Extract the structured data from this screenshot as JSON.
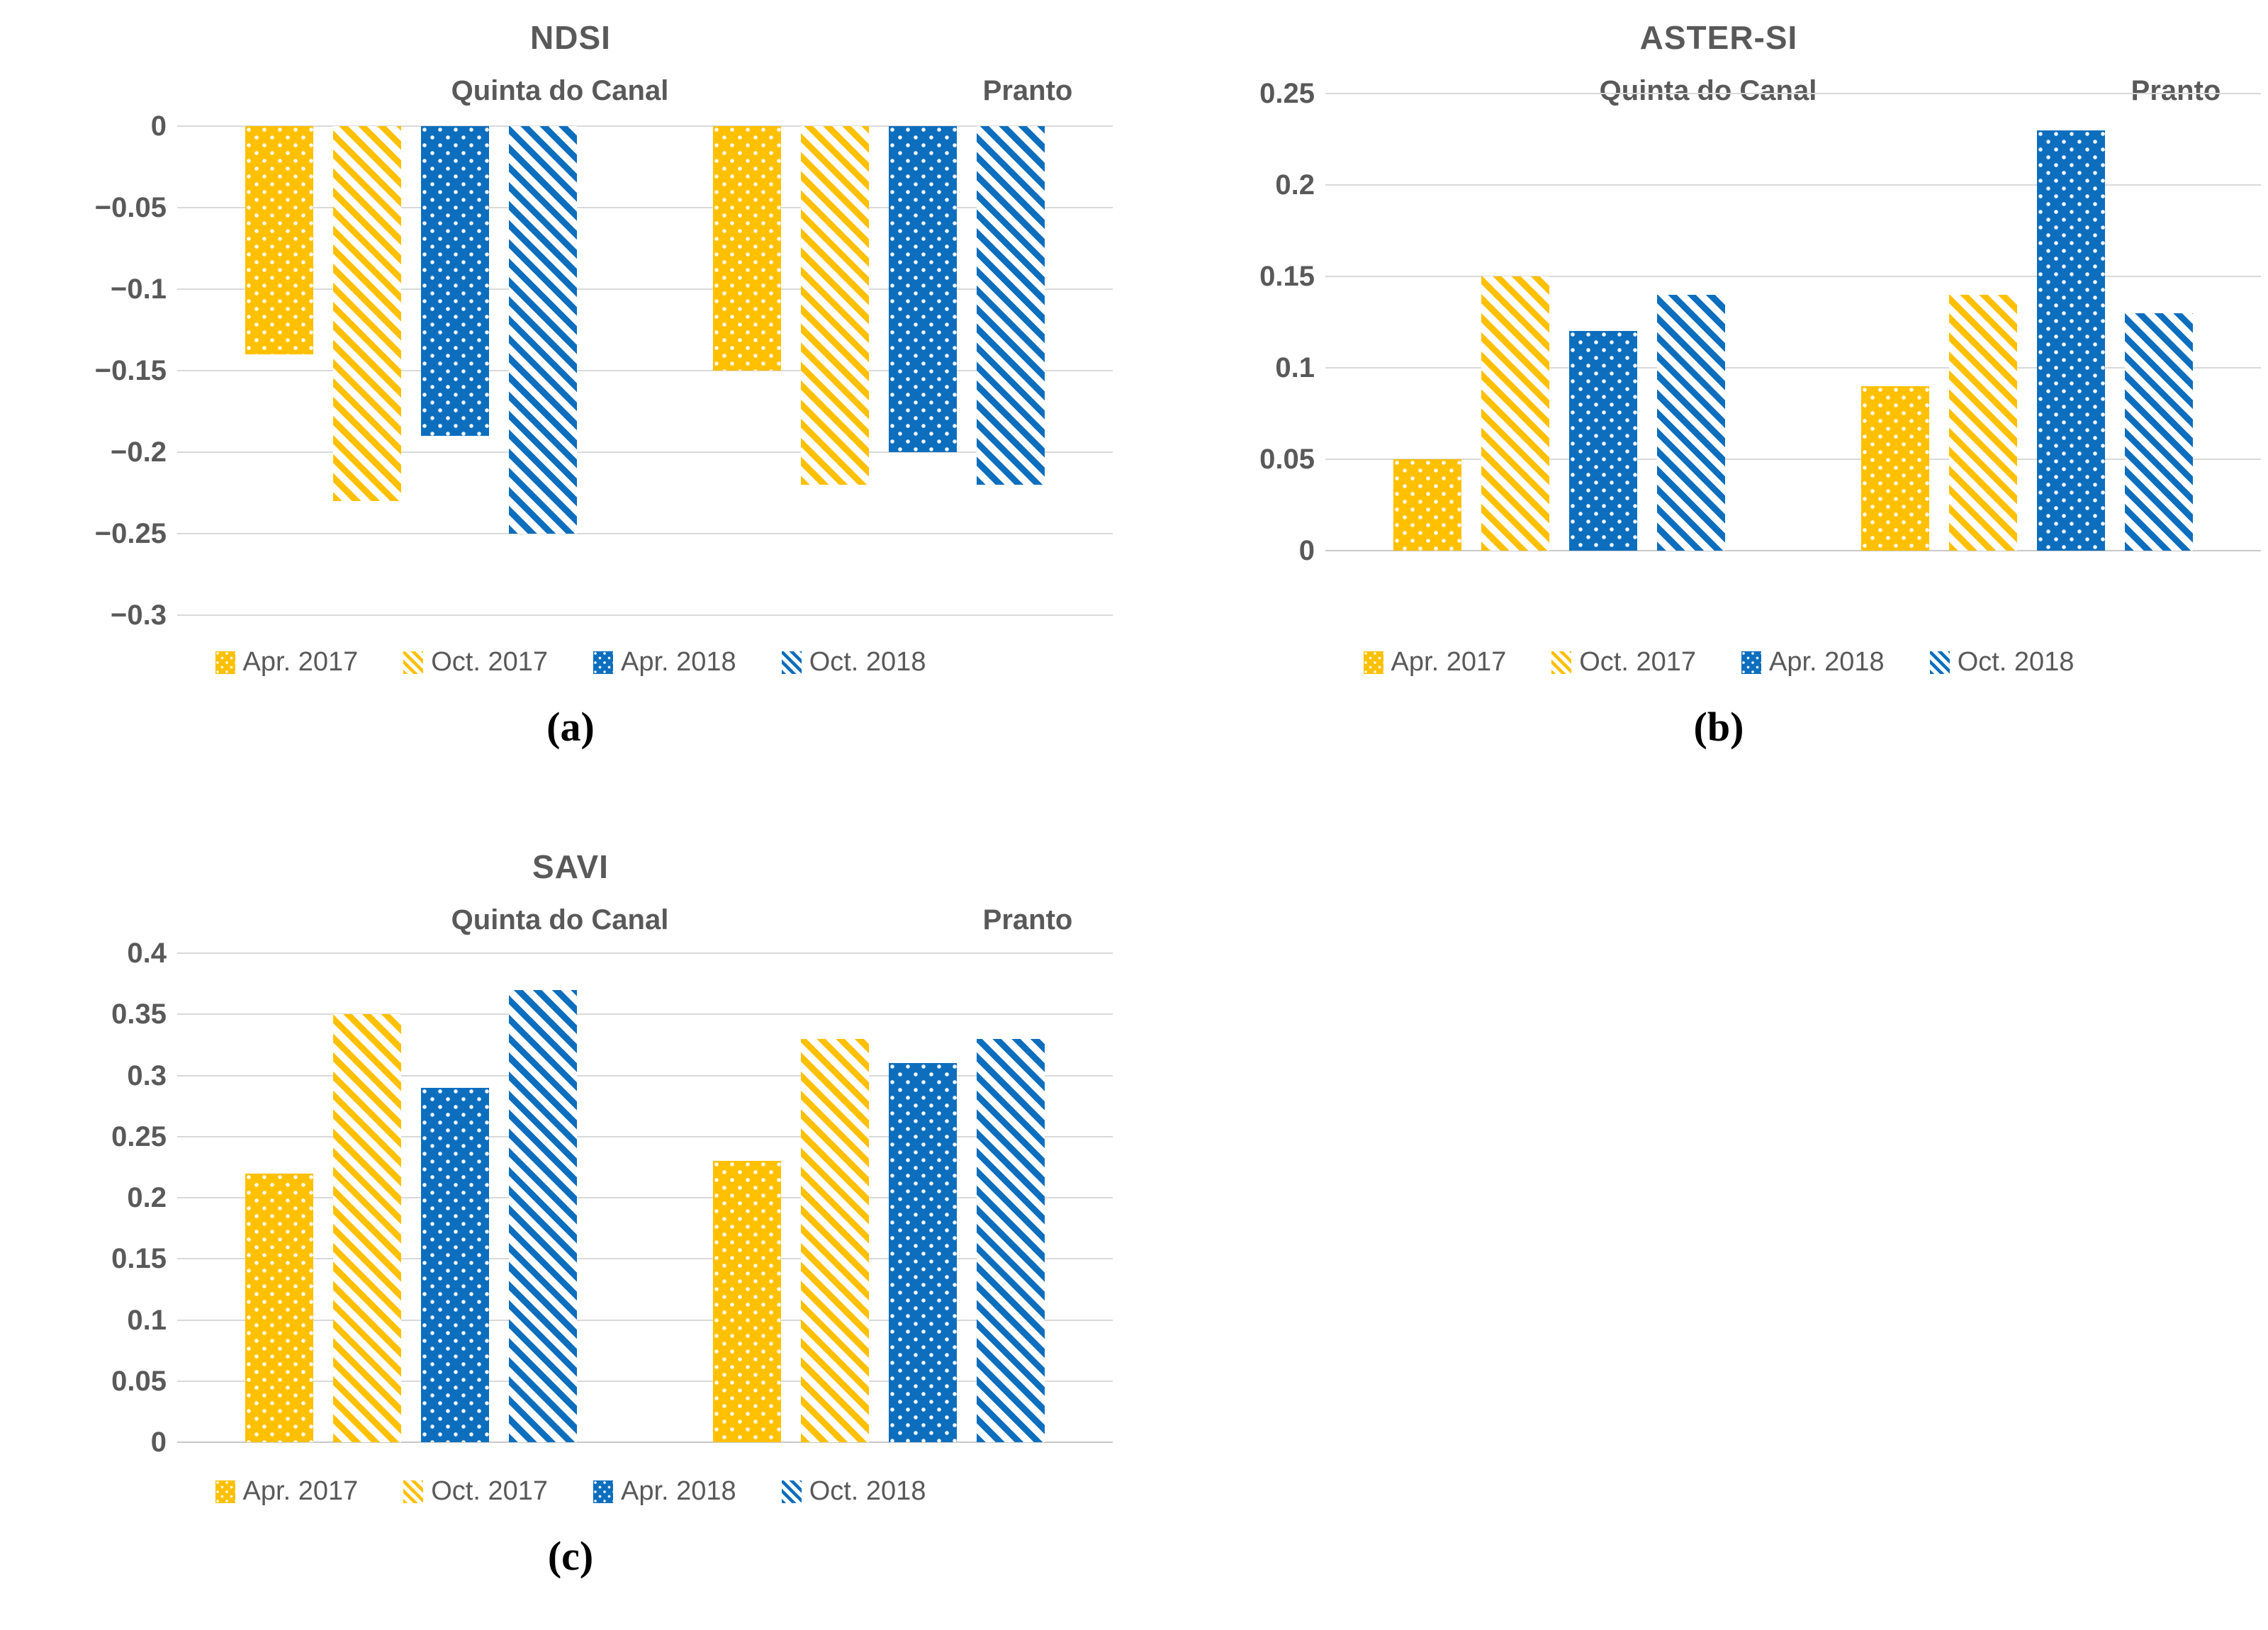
{
  "figure": {
    "text_color": "#595959",
    "grid_color": "#D9D9D9",
    "background": "#FFFFFF",
    "accent_yellow": "#FFC000",
    "accent_blue": "#0D6EBE",
    "legend_labels": [
      "Apr. 2017",
      "Oct. 2017",
      "Apr. 2018",
      "Oct. 2018"
    ],
    "legend_swatch_names": [
      "yellow-dotted-swatch",
      "yellow-hatch-swatch",
      "blue-dotted-swatch",
      "blue-hatch-swatch"
    ]
  },
  "chart_data": [
    {
      "type": "bar",
      "title": "NDSI",
      "letter": "(a)",
      "groups": [
        "Quinta do Canal",
        "Pranto"
      ],
      "ylim": [
        -0.3,
        0
      ],
      "grid": true,
      "legend_position": "bottom",
      "tick_labels": [
        "0",
        "−0.05",
        "−0.1",
        "−0.15",
        "−0.2",
        "−0.25",
        "−0.3"
      ],
      "series": [
        {
          "name": "Apr. 2017",
          "color": "#FFC000",
          "pattern": "dots",
          "values": [
            -0.14,
            -0.15
          ]
        },
        {
          "name": "Oct. 2017",
          "color": "#FFC000",
          "pattern": "hatch",
          "values": [
            -0.23,
            -0.22
          ]
        },
        {
          "name": "Apr. 2018",
          "color": "#0D6EBE",
          "pattern": "dots",
          "values": [
            -0.19,
            -0.2
          ]
        },
        {
          "name": "Oct. 2018",
          "color": "#0D6EBE",
          "pattern": "hatch",
          "values": [
            -0.25,
            -0.22
          ]
        }
      ]
    },
    {
      "type": "bar",
      "title": "ASTER-SI",
      "letter": "(b)",
      "groups": [
        "Quinta do Canal",
        "Pranto"
      ],
      "ylim": [
        0,
        0.25
      ],
      "grid": true,
      "legend_position": "bottom",
      "tick_labels": [
        "0.25",
        "0.2",
        "0.15",
        "0.1",
        "0.05",
        "0"
      ],
      "series": [
        {
          "name": "Apr. 2017",
          "color": "#FFC000",
          "pattern": "dots",
          "values": [
            0.05,
            0.09
          ]
        },
        {
          "name": "Oct. 2017",
          "color": "#FFC000",
          "pattern": "hatch",
          "values": [
            0.15,
            0.14
          ]
        },
        {
          "name": "Apr. 2018",
          "color": "#0D6EBE",
          "pattern": "dots",
          "values": [
            0.12,
            0.23
          ]
        },
        {
          "name": "Oct. 2018",
          "color": "#0D6EBE",
          "pattern": "hatch",
          "values": [
            0.14,
            0.13
          ]
        }
      ]
    },
    {
      "type": "bar",
      "title": "SAVI",
      "letter": "(c)",
      "groups": [
        "Quinta do Canal",
        "Pranto"
      ],
      "ylim": [
        0,
        0.4
      ],
      "grid": true,
      "legend_position": "bottom",
      "tick_labels": [
        "0.4",
        "0.35",
        "0.3",
        "0.25",
        "0.2",
        "0.15",
        "0.1",
        "0.05",
        "0"
      ],
      "series": [
        {
          "name": "Apr. 2017",
          "color": "#FFC000",
          "pattern": "dots",
          "values": [
            0.22,
            0.23
          ]
        },
        {
          "name": "Oct. 2017",
          "color": "#FFC000",
          "pattern": "hatch",
          "values": [
            0.35,
            0.33
          ]
        },
        {
          "name": "Apr. 2018",
          "color": "#0D6EBE",
          "pattern": "dots",
          "values": [
            0.29,
            0.31
          ]
        },
        {
          "name": "Oct. 2018",
          "color": "#0D6EBE",
          "pattern": "hatch",
          "values": [
            0.37,
            0.33
          ]
        }
      ]
    }
  ]
}
